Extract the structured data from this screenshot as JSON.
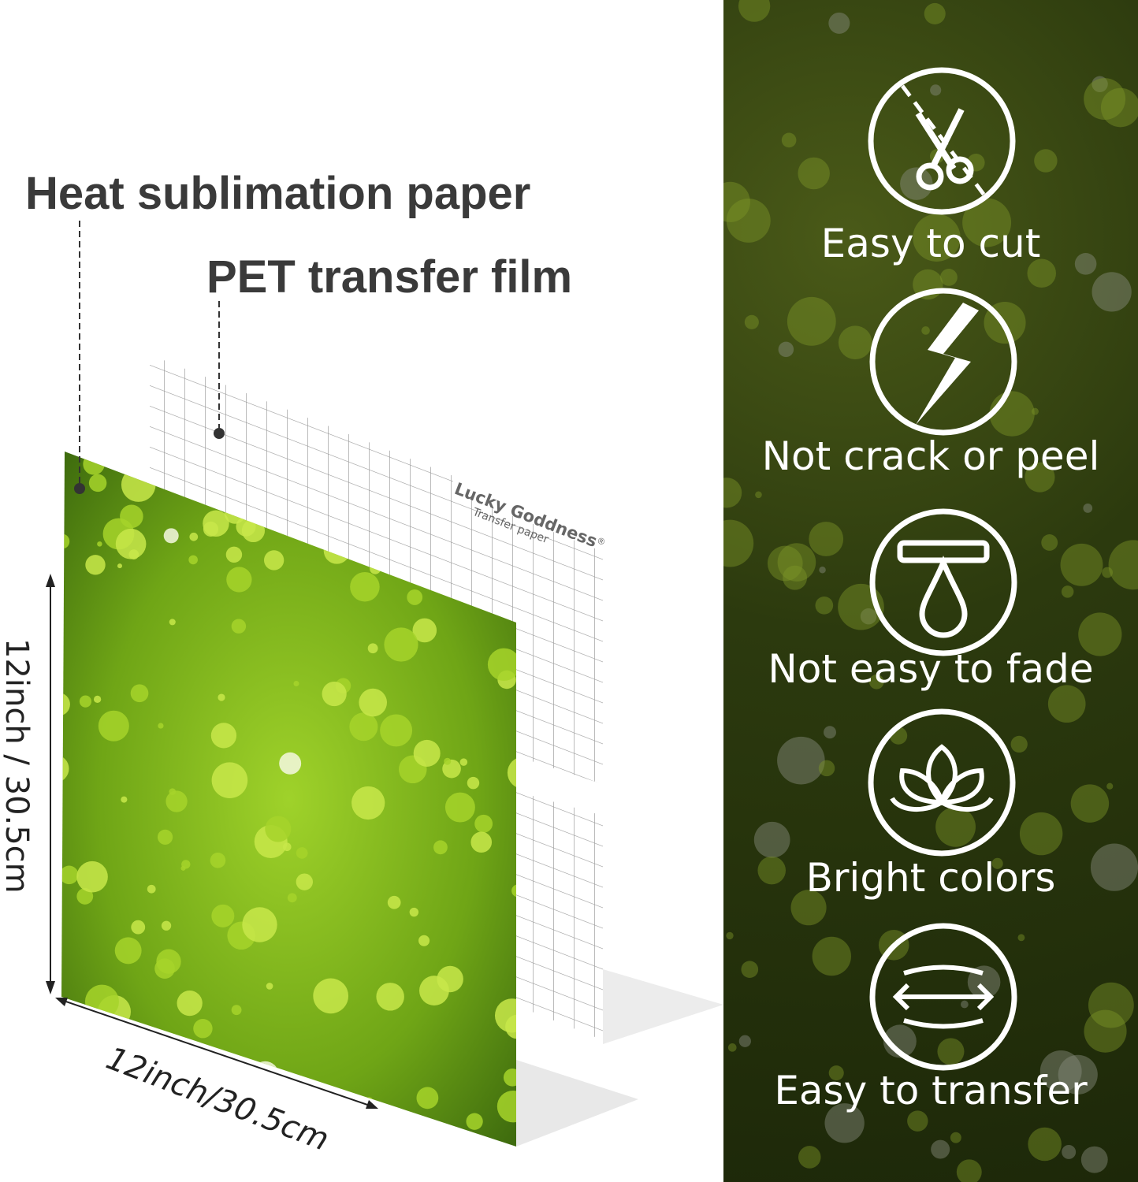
{
  "callouts": {
    "heat_paper": "Heat sublimation paper",
    "pet_film": "PET transfer film"
  },
  "film": {
    "brand": "Lucky Goddness",
    "registered": "®",
    "subtitle": "Transfer paper"
  },
  "dimensions": {
    "height": "12inch / 30.5cm",
    "width": "12inch/30.5cm"
  },
  "features": [
    {
      "icon": "scissors-icon",
      "label": "Easy to cut"
    },
    {
      "icon": "crack-icon",
      "label": "Not crack or peel"
    },
    {
      "icon": "drop-icon",
      "label": "Not easy to fade"
    },
    {
      "icon": "petals-icon",
      "label": "Bright colors"
    },
    {
      "icon": "stretch-arrows-icon",
      "label": "Easy to transfer"
    }
  ],
  "colors": {
    "glitter": "#8cc21a",
    "panel": "#2c3a0e",
    "text": "#3a3a3a"
  }
}
